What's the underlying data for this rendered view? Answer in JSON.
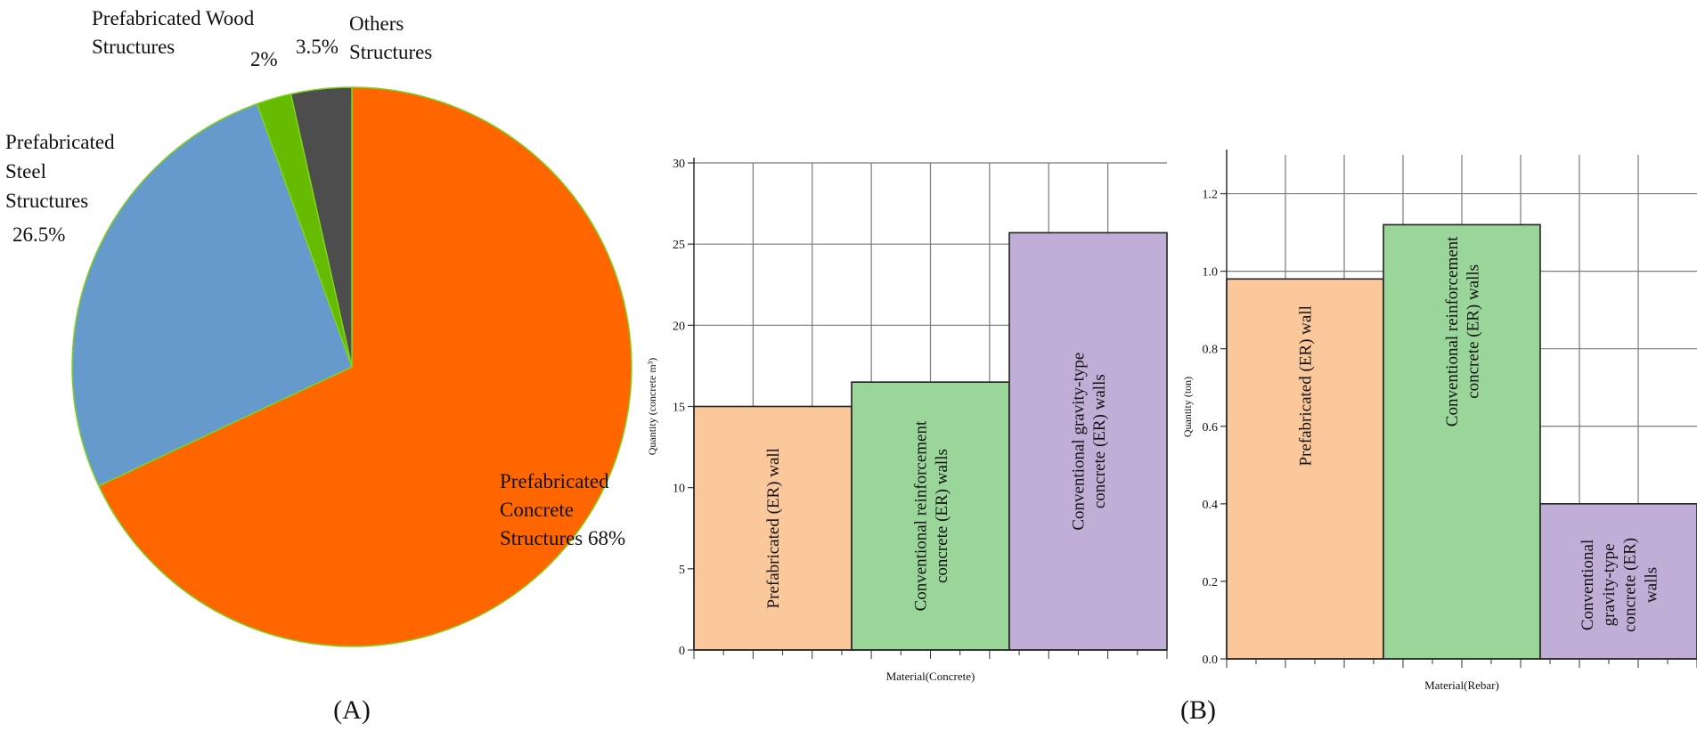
{
  "chart_data": [
    {
      "id": "A",
      "type": "pie",
      "panel_label": "(A)",
      "slices": [
        {
          "label_lines": [
            "Prefabricated",
            "Concrete",
            "Structures 68%"
          ],
          "value": 68,
          "color": "#ff6600"
        },
        {
          "label_lines": [
            "Prefabricated",
            "Steel",
            "Structures"
          ],
          "pct_text": "26.5%",
          "value": 26.5,
          "color": "#6699cc"
        },
        {
          "label_lines": [
            "Prefabricated Wood",
            "Structures"
          ],
          "pct_text": "2%",
          "value": 2,
          "color": "#66bb00"
        },
        {
          "label_lines": [
            "Others",
            "Structures"
          ],
          "pct_text": "3.5%",
          "value": 3.5,
          "color": "#4d4d4d"
        }
      ]
    },
    {
      "id": "B1",
      "type": "bar",
      "panel_label": "(B)",
      "xlabel": "Material(Concrete)",
      "ylabel": "Quantity (concrete m³)",
      "ylim": [
        0,
        30
      ],
      "yticks": [
        "0",
        "5",
        "10",
        "15",
        "20",
        "25",
        "30"
      ],
      "bars": [
        {
          "lines": [
            "Prefabricated  (ER)  wall"
          ],
          "value": 15.0,
          "color": "#fac89b"
        },
        {
          "lines": [
            "Conventional  reinforcement",
            "concrete  (ER)  walls"
          ],
          "value": 16.5,
          "color": "#9ad59a"
        },
        {
          "lines": [
            "Conventional  gravity-type",
            "concrete  (ER)  walls"
          ],
          "value": 25.7,
          "color": "#c0aed6"
        }
      ]
    },
    {
      "id": "B2",
      "type": "bar",
      "xlabel": "Material(Rebar)",
      "ylabel": "Quantity (ton)",
      "ylim": [
        0,
        1.3
      ],
      "yticks": [
        "0.0",
        "0.2",
        "0.4",
        "0.6",
        "0.8",
        "1.0",
        "1.2"
      ],
      "bars": [
        {
          "lines": [
            "Prefabricated  (ER)  wall"
          ],
          "value": 0.98,
          "color": "#fac89b"
        },
        {
          "lines": [
            "Conventional  reinforcement",
            "concrete  (ER)  walls"
          ],
          "value": 1.12,
          "color": "#9ad59a"
        },
        {
          "lines": [
            "Conventional",
            "gravity-type",
            "concrete  (ER)",
            "walls"
          ],
          "value": 0.4,
          "color": "#c0aed6"
        }
      ]
    }
  ]
}
